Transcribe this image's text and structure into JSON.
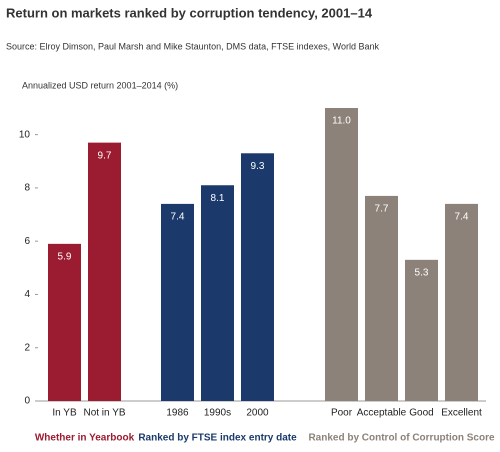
{
  "chart_data": {
    "type": "bar",
    "title": "Return on markets ranked by corruption tendency, 2001–14",
    "subtitle": "Source: Elroy Dimson, Paul Marsh and Mike Staunton, DMS data, FTSE indexes, World Bank",
    "y_label": "Annualized USD return 2001–2014 (%)",
    "ylim": [
      0,
      11
    ],
    "yticks": [
      0,
      2,
      4,
      6,
      8,
      10
    ],
    "groups": [
      {
        "name": "Whether in Yearbook",
        "color": "#9b1b30",
        "categories": [
          "In YB",
          "Not in YB"
        ],
        "values": [
          5.9,
          9.7
        ],
        "value_labels": [
          "5.9",
          "9.7"
        ]
      },
      {
        "name": "Ranked by FTSE index entry date",
        "color": "#1b3a6b",
        "categories": [
          "1986",
          "1990s",
          "2000"
        ],
        "values": [
          7.4,
          8.1,
          9.3
        ],
        "value_labels": [
          "7.4",
          "8.1",
          "9.3"
        ]
      },
      {
        "name": "Ranked by Control of Corruption Score",
        "color": "#8c8279",
        "categories": [
          "Poor",
          "Acceptable",
          "Good",
          "Excellent"
        ],
        "values": [
          11.0,
          7.7,
          5.3,
          7.4
        ],
        "value_labels": [
          "11.0",
          "7.7",
          "5.3",
          "7.4"
        ]
      }
    ]
  }
}
